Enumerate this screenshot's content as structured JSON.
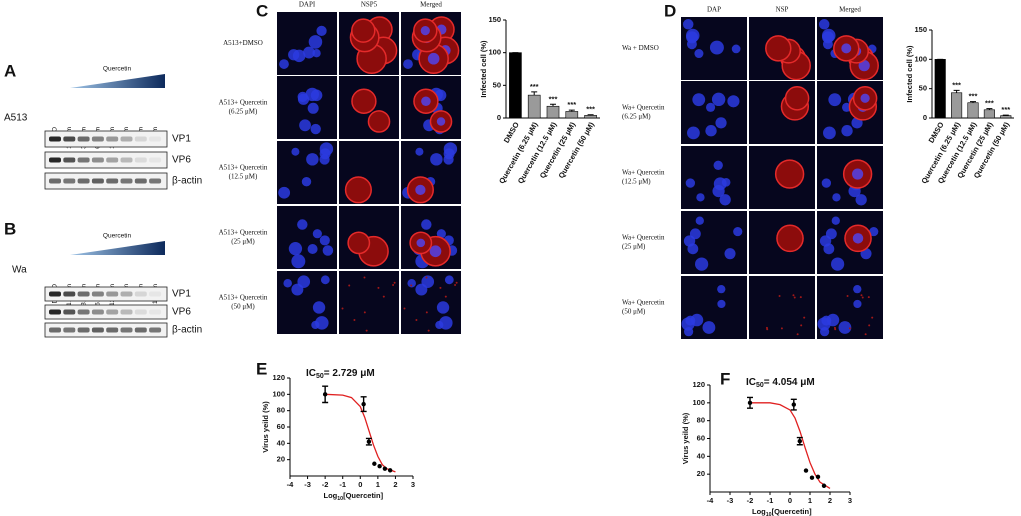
{
  "panel_a": {
    "label": "A",
    "cell_line": "A513",
    "treatment": "Quercetin",
    "lanes": [
      "DMSO",
      "1.56μm",
      "3.12μm",
      "6.25μm",
      "12.5μm",
      "25μm",
      "50μm",
      "100μm"
    ],
    "proteins": [
      "VP1",
      "VP6",
      "β-actin"
    ]
  },
  "panel_b": {
    "label": "B",
    "cell_line": "Wa",
    "treatment": "Quercetin",
    "lanes": [
      "DMSO",
      "1.56μm",
      "3.12μm",
      "6.25μm",
      "12.5μm",
      "25μm",
      "50μm",
      "100μm"
    ],
    "proteins": [
      "VP1",
      "VP6",
      "β-actin"
    ]
  },
  "panel_c": {
    "label": "C",
    "columns": [
      "DAPI",
      "NSP5",
      "Merged"
    ],
    "rows": [
      [
        "A513+DMSO"
      ],
      [
        "A513+ Quercetin",
        "(6.25 μM)"
      ],
      [
        "A513+ Quercetin",
        "(12.5 μM)"
      ],
      [
        "A513+ Quercetin",
        "(25 μM)"
      ],
      [
        "A513+ Quercetin",
        "(50 μM)"
      ]
    ]
  },
  "panel_d": {
    "label": "D",
    "columns": [
      "DAP",
      "NSP",
      "Merged"
    ],
    "rows": [
      [
        "Wa + DMSO"
      ],
      [
        "Wa+ Quercetin",
        "(6.25 μM)"
      ],
      [
        "Wa+ Quercetin",
        "(12.5 μM)"
      ],
      [
        "Wa+ Quercetin",
        "(25 μM)"
      ],
      [
        "Wa+ Quercetin",
        "(50 μM)"
      ]
    ]
  },
  "panel_e": {
    "label": "E"
  },
  "panel_f": {
    "label": "F"
  },
  "chart_data": [
    {
      "type": "bar",
      "y_label": "Infected cell (%)",
      "categories": [
        "DMSO",
        "Quercetin (6.25 μM)",
        "Quercetin (12.5 μM)",
        "Quercetin (25 μM)",
        "Quercetin (50 μM)"
      ],
      "values": [
        100,
        35,
        18,
        10,
        4
      ],
      "errors": [
        0,
        5,
        3,
        2,
        1
      ],
      "colors": [
        "#000000",
        "#9a9a9a",
        "#9a9a9a",
        "#9a9a9a",
        "#9a9a9a"
      ],
      "annotations": [
        {
          "category": "Quercetin (6.25 μM)",
          "text": "***"
        },
        {
          "category": "Quercetin (12.5 μM)",
          "text": "***"
        },
        {
          "category": "Quercetin (25 μM)",
          "text": "***"
        },
        {
          "category": "Quercetin (50 μM)",
          "text": "***"
        }
      ],
      "ylim": [
        0,
        150
      ],
      "yticks": [
        0,
        50,
        100,
        150
      ]
    },
    {
      "type": "bar",
      "y_label": "Infected cell (%)",
      "categories": [
        "DMSO",
        "Quercetin (6.25 μM)",
        "Quercetin (12.5 μM)",
        "Quercetin (25 μM)",
        "Quercetin (50 μM)"
      ],
      "values": [
        100,
        43,
        26,
        14,
        4
      ],
      "errors": [
        0,
        4,
        2,
        2,
        1
      ],
      "colors": [
        "#000000",
        "#9a9a9a",
        "#9a9a9a",
        "#9a9a9a",
        "#9a9a9a"
      ],
      "annotations": [
        {
          "category": "Quercetin (6.25 μM)",
          "text": "***"
        },
        {
          "category": "Quercetin (12.5 μM)",
          "text": "***"
        },
        {
          "category": "Quercetin (25 μM)",
          "text": "***"
        },
        {
          "category": "Quercetin (50 μM)",
          "text": "***"
        }
      ],
      "ylim": [
        0,
        150
      ],
      "yticks": [
        0,
        50,
        100,
        150
      ]
    },
    {
      "type": "dose-response",
      "title_parts": [
        "IC",
        "50",
        "= 2.729 μM"
      ],
      "x_label_parts": [
        "Log",
        "10",
        "[Quercetin]"
      ],
      "y_label": "Virus yeild (%)",
      "xlim": [
        -4,
        3
      ],
      "xticks": [
        -4,
        -3,
        -2,
        -1,
        0,
        1,
        2,
        3
      ],
      "ylim": [
        0,
        120
      ],
      "yticks": [
        20,
        40,
        60,
        80,
        100,
        120
      ],
      "points": {
        "color": "#000000",
        "x": [
          -2,
          0.19,
          0.49,
          0.8,
          1.1,
          1.4,
          1.7
        ],
        "values": [
          100,
          88,
          42,
          15,
          12,
          9,
          7
        ],
        "errors": [
          10,
          9,
          4,
          null,
          null,
          null,
          null
        ]
      },
      "fit": {
        "color": "#e02020",
        "x": [
          -2,
          -1,
          -0.5,
          0,
          0.25,
          0.5,
          0.75,
          1,
          1.25,
          1.5,
          2
        ],
        "values": [
          100,
          99,
          96,
          85,
          72,
          55,
          38,
          24,
          14,
          9,
          5
        ]
      }
    },
    {
      "type": "dose-response",
      "title_parts": [
        "IC",
        "50",
        "= 4.054 μM"
      ],
      "x_label_parts": [
        "Log",
        "10",
        "[Quercetin]"
      ],
      "y_label": "Virus yeild (%)",
      "xlim": [
        -4,
        3
      ],
      "xticks": [
        -4,
        -3,
        -2,
        -1,
        0,
        1,
        2,
        3
      ],
      "ylim": [
        0,
        120
      ],
      "yticks": [
        20,
        40,
        60,
        80,
        100,
        120
      ],
      "points": {
        "color": "#000000",
        "x": [
          -2,
          0.19,
          0.49,
          0.8,
          1.1,
          1.4,
          1.7
        ],
        "values": [
          100,
          98,
          57,
          24,
          16,
          17,
          7
        ],
        "errors": [
          6,
          6,
          4,
          null,
          null,
          null,
          null
        ]
      },
      "fit": {
        "color": "#e02020",
        "x": [
          -2,
          -1,
          -0.5,
          0,
          0.25,
          0.5,
          0.75,
          1,
          1.25,
          1.5,
          2
        ],
        "values": [
          100,
          100,
          98,
          92,
          83,
          68,
          50,
          33,
          20,
          11,
          4
        ]
      }
    }
  ]
}
